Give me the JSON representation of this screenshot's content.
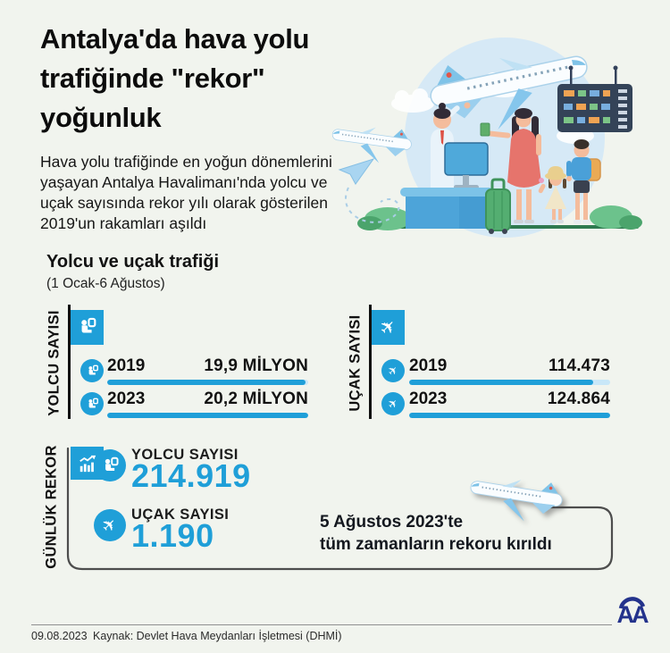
{
  "header": {
    "title_lines": [
      "Antalya'da hava yolu",
      "trafiğinde \"rekor\"",
      "yoğunluk"
    ],
    "intro": "Hava yolu trafiğinde en yoğun dönemlerini yaşayan Antalya Havalimanı'nda yolcu ve uçak sayısında rekor yılı olarak gösterilen 2019'un rakamları aşıldı"
  },
  "section": {
    "title": "Yolcu ve uçak trafiği",
    "subtitle": "(1 Ocak-6 Ağustos)"
  },
  "chart_data": [
    {
      "type": "bar",
      "title": "YOLCU SAYISI",
      "orientation": "horizontal",
      "categories": [
        "2019",
        "2023"
      ],
      "values": [
        19.9,
        20.2
      ],
      "value_labels": [
        "19,9 MİLYON",
        "20,2 MİLYON"
      ],
      "icon": "seated-passenger-icon",
      "bar_color": "#1f9fd8",
      "track_color": "#c8e7f8",
      "legend": "none",
      "grid": false
    },
    {
      "type": "bar",
      "title": "UÇAK SAYISI",
      "orientation": "horizontal",
      "categories": [
        "2019",
        "2023"
      ],
      "values": [
        114473,
        124864
      ],
      "value_labels": [
        "114.473",
        "124.864"
      ],
      "icon": "airplane-icon",
      "bar_color": "#1f9fd8",
      "track_color": "#c8e7f8",
      "legend": "none",
      "grid": false
    }
  ],
  "daily_record": {
    "label": "GÜNLÜK REKOR",
    "icon": "trend-chart-icon",
    "stats": [
      {
        "label": "YOLCU SAYISI",
        "value": "214.919",
        "icon": "seated-passenger-icon"
      },
      {
        "label": "UÇAK SAYISI",
        "value": "1.190",
        "icon": "airplane-icon"
      }
    ],
    "note_lines": [
      "5 Ağustos 2023'te",
      "tüm zamanların rekoru kırıldı"
    ]
  },
  "footer": {
    "date": "09.08.2023",
    "source": "Kaynak: Devlet Hava Meydanları İşletmesi (DHMİ)",
    "agency_logo_text": "AA"
  },
  "icons": {
    "airplane_glyph": "✈"
  },
  "colors": {
    "accent": "#1f9fd8",
    "bar_light": "#c8e7f8",
    "ink": "#121212",
    "bg": "#f1f4ee",
    "logo_navy": "#24338c",
    "panel_border": "#4d4d4d"
  }
}
